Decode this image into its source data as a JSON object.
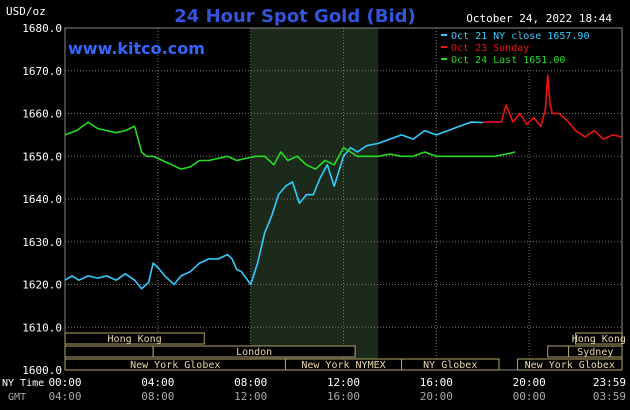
{
  "header": {
    "unit_label": "USD/oz",
    "title": "24 Hour Spot Gold (Bid)",
    "datetime": "October 24, 2022 18:44",
    "website": "www.kitco.com"
  },
  "legend": [
    {
      "text": "Oct 21 NY close 1657.90",
      "color": "#33ccff"
    },
    {
      "text": "Oct 23 Sunday",
      "color": "#ee1111"
    },
    {
      "text": "Oct 24 Last 1651.00",
      "color": "#22dd22"
    }
  ],
  "colors": {
    "background": "#000000",
    "plot_background": "#000000",
    "grid": "#777777",
    "highlight_band": "#1c2a1c",
    "title": "#3355dd",
    "website": "#3366ff",
    "axis_text": "#ffffff",
    "session_fill": "#000000",
    "session_border": "#b5a36a",
    "session_text": "#e8d9a8",
    "gmt_text": "#aaaaaa"
  },
  "chart_data": {
    "type": "line",
    "title": "24 Hour Spot Gold (Bid)",
    "ylabel": "USD/oz",
    "ylim": [
      1600,
      1680
    ],
    "xlim": [
      0,
      24
    ],
    "grid": true,
    "legend_position": "top-right",
    "y_ticks": [
      "1680.0",
      "1670.0",
      "1660.0",
      "1650.0",
      "1640.0",
      "1630.0",
      "1620.0",
      "1610.0",
      "1600.0"
    ],
    "x_axis_label": "NY Time",
    "x_ticks": [
      "00:00",
      "04:00",
      "08:00",
      "12:00",
      "16:00",
      "20:00",
      "23:59"
    ],
    "x2_axis_label": "GMT",
    "x2_ticks": [
      "04:00",
      "08:00",
      "12:00",
      "16:00",
      "20:00",
      "00:00",
      "03:59"
    ],
    "highlight_range": [
      8.0,
      13.5
    ],
    "series": [
      {
        "name": "Oct 21 NY close 1657.90",
        "color": "#33ccff",
        "x": [
          0,
          0.3,
          0.6,
          1,
          1.4,
          1.8,
          2.2,
          2.6,
          3.0,
          3.3,
          3.6,
          3.8,
          4.0,
          4.3,
          4.7,
          5.0,
          5.4,
          5.8,
          6.2,
          6.6,
          7.0,
          7.2,
          7.4,
          7.6,
          8.0,
          8.3,
          8.6,
          8.9,
          9.2,
          9.5,
          9.8,
          10.1,
          10.4,
          10.7,
          11.0,
          11.3,
          11.6,
          12.0,
          12.3,
          12.6,
          13.0,
          13.5,
          14.0,
          14.5,
          15.0,
          15.5,
          16.0,
          16.5,
          17.0,
          17.5,
          18.0
        ],
        "y": [
          1621,
          1622,
          1621,
          1622,
          1621.5,
          1622,
          1621,
          1622.5,
          1621,
          1619,
          1620.5,
          1625,
          1624,
          1622,
          1620,
          1622,
          1623,
          1625,
          1626,
          1626,
          1627,
          1626,
          1623.5,
          1623,
          1620,
          1625,
          1632,
          1636,
          1641,
          1643,
          1644,
          1639,
          1641,
          1641,
          1645,
          1648,
          1643,
          1650,
          1652,
          1651,
          1652.5,
          1653,
          1654,
          1655,
          1654,
          1656,
          1655,
          1656,
          1657,
          1658,
          1657.9
        ]
      },
      {
        "name": "Oct 23 Sunday",
        "color": "#ee1111",
        "x": [
          18.0,
          18.8,
          19.0,
          19.3,
          19.6,
          19.9,
          20.2,
          20.5,
          20.7,
          20.8,
          20.9,
          21.0,
          21.3,
          21.7,
          22.0,
          22.4,
          22.8,
          23.2,
          23.6,
          24.0
        ],
        "y": [
          1658,
          1658,
          1662,
          1658,
          1660,
          1657.5,
          1659,
          1657,
          1661,
          1669,
          1662,
          1660,
          1660,
          1658,
          1656,
          1654.5,
          1656,
          1654,
          1655,
          1654.5
        ]
      },
      {
        "name": "Oct 24 Last 1651.00",
        "color": "#22dd22",
        "x": [
          0,
          0.5,
          1.0,
          1.4,
          1.8,
          2.2,
          2.6,
          3.0,
          3.3,
          3.5,
          3.8,
          4.2,
          4.6,
          5.0,
          5.4,
          5.8,
          6.2,
          6.6,
          7.0,
          7.4,
          7.8,
          8.2,
          8.6,
          9.0,
          9.3,
          9.6,
          10.0,
          10.4,
          10.8,
          11.2,
          11.6,
          12.0,
          12.3,
          12.6,
          13.0,
          13.5,
          14.0,
          14.5,
          15.0,
          15.5,
          16.0,
          16.5,
          17.0,
          17.5,
          18.0,
          18.5,
          19.0,
          19.4
        ],
        "y": [
          1655,
          1656,
          1658,
          1656.5,
          1656,
          1655.5,
          1656,
          1657,
          1651,
          1650,
          1650,
          1649,
          1648,
          1647,
          1647.5,
          1649,
          1649,
          1649.5,
          1650,
          1649,
          1649.5,
          1650,
          1650,
          1648,
          1651,
          1649,
          1650,
          1648,
          1647,
          1649,
          1648,
          1652,
          1651,
          1650,
          1650,
          1650,
          1650.5,
          1650,
          1650,
          1651,
          1650,
          1650,
          1650,
          1650,
          1650,
          1650,
          1650.5,
          1651
        ]
      }
    ],
    "sessions": {
      "rows": [
        [
          {
            "label": "Hong Kong",
            "start": 0,
            "end": 6
          },
          {
            "label": "Hong Kong",
            "start": 22,
            "end": 24
          }
        ],
        [
          {
            "label": "",
            "start": 0,
            "end": 3.8
          },
          {
            "label": "London",
            "start": 3.8,
            "end": 12.5
          },
          {
            "label": "",
            "start": 20.8,
            "end": 21.7
          },
          {
            "label": "Sydney",
            "start": 21.7,
            "end": 24
          }
        ],
        [
          {
            "label": "New York Globex",
            "start": 0,
            "end": 9.5
          },
          {
            "label": "New York NYMEX",
            "start": 9.5,
            "end": 14.5
          },
          {
            "label": "NY Globex",
            "start": 14.5,
            "end": 18.7
          },
          {
            "label": "New York Globex",
            "start": 19.5,
            "end": 24
          }
        ]
      ]
    }
  }
}
